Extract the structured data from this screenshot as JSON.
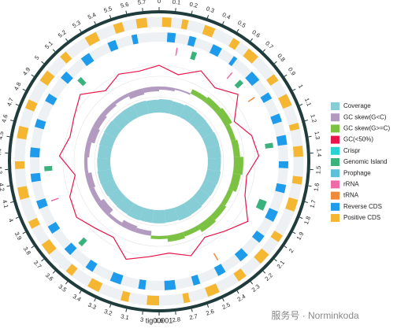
{
  "chart_data": {
    "type": "circos",
    "subtitle": "tig00001",
    "watermark": "服务号 · Norminkoda",
    "xlim": [
      0,
      5.8
    ],
    "xticks": [
      0,
      0.1,
      0.2,
      0.3,
      0.4,
      0.5,
      0.6,
      0.7,
      0.8,
      0.9,
      1,
      1.1,
      1.2,
      1.3,
      1.4,
      1.5,
      1.6,
      1.7,
      1.8,
      1.9,
      2,
      2.1,
      2.2,
      2.3,
      2.4,
      2.5,
      2.6,
      2.7,
      2.8,
      2.9,
      3,
      3.1,
      3.2,
      3.3,
      3.4,
      3.5,
      3.6,
      3.7,
      3.8,
      3.9,
      4,
      4.1,
      4.2,
      4.3,
      4.4,
      4.5,
      4.6,
      4.7,
      4.8,
      4.9,
      5,
      5.1,
      5.2,
      5.3,
      5.4,
      5.5,
      5.6,
      5.7
    ],
    "x": [
      0,
      0.2,
      0.4,
      0.6,
      0.8,
      1,
      1.2,
      1.4,
      1.6,
      1.8,
      2,
      2.2,
      2.4,
      2.6,
      2.8,
      3,
      3.2,
      3.4,
      3.6,
      3.8,
      4,
      4.2,
      4.4,
      4.6,
      4.8,
      5,
      5.2,
      5.4,
      5.6
    ],
    "series": [
      {
        "name": "Coverage",
        "color": "#86cdd6",
        "values": [
          102,
          98,
          105,
          100,
          97,
          103,
          101,
          99,
          104,
          100,
          96,
          102,
          105,
          98,
          101,
          100,
          103,
          99,
          97,
          102,
          104,
          100,
          98,
          101,
          103,
          99,
          100,
          102,
          98
        ]
      },
      {
        "name": "GC skew(G<C)",
        "color": "#b39ac0",
        "values": [
          -0.02,
          -0.01,
          null,
          null,
          null,
          null,
          null,
          null,
          null,
          null,
          null,
          null,
          null,
          null,
          null,
          -0.03,
          -0.04,
          -0.02,
          -0.05,
          -0.03,
          -0.04,
          -0.02,
          -0.03,
          -0.05,
          -0.04,
          -0.03,
          -0.02,
          -0.04,
          -0.03
        ]
      },
      {
        "name": "GC skew(G>=C)",
        "color": "#7cc242",
        "values": [
          null,
          null,
          0.03,
          0.04,
          0.05,
          0.03,
          0.04,
          0.06,
          0.05,
          0.03,
          0.04,
          0.05,
          0.03,
          0.04,
          0.02,
          null,
          null,
          null,
          null,
          null,
          null,
          null,
          null,
          null,
          null,
          null,
          null,
          null,
          null
        ]
      },
      {
        "name": "GC(<50%)",
        "color": "#e8154b",
        "values": [
          41,
          39,
          42,
          40,
          43,
          38,
          41,
          42,
          39,
          40,
          44,
          41,
          39,
          42,
          40,
          41,
          43,
          39,
          40,
          42,
          41,
          38,
          42,
          40,
          41,
          43,
          39,
          41,
          40
        ]
      },
      {
        "name": "Crispr",
        "color": "#29d3d3",
        "features": []
      },
      {
        "name": "Genomic Island",
        "color": "#3ab27c",
        "features": [
          [
            0.27,
            0.31
          ],
          [
            0.72,
            0.76
          ],
          [
            1.3,
            1.34
          ],
          [
            1.78,
            1.86
          ],
          [
            3.58,
            3.62
          ],
          [
            4.27,
            4.31
          ],
          [
            5.07,
            5.11
          ]
        ]
      },
      {
        "name": "Prophage",
        "color": "#5cc0d9",
        "features": []
      },
      {
        "name": "rRNA",
        "color": "#ee6ba7",
        "features": [
          [
            0.14,
            0.15
          ],
          [
            0.63,
            0.64
          ],
          [
            4.02,
            4.03
          ]
        ]
      },
      {
        "name": "tRNA",
        "color": "#f08a3b",
        "features": [
          [
            0.9,
            0.91
          ],
          [
            2.4,
            2.41
          ]
        ]
      },
      {
        "name": "Reverse CDS",
        "color": "#1e9bea",
        "features": [
          [
            0.06,
            0.12
          ],
          [
            0.22,
            0.27
          ],
          [
            0.4,
            0.47
          ],
          [
            0.57,
            0.6
          ],
          [
            0.74,
            0.82
          ],
          [
            0.93,
            0.98
          ],
          [
            1.1,
            1.16
          ],
          [
            1.26,
            1.33
          ],
          [
            1.45,
            1.5
          ],
          [
            1.62,
            1.68
          ],
          [
            1.82,
            1.9
          ],
          [
            2.02,
            2.08
          ],
          [
            2.2,
            2.27
          ],
          [
            2.4,
            2.46
          ],
          [
            2.6,
            2.65
          ],
          [
            2.78,
            2.86
          ],
          [
            3.0,
            3.05
          ],
          [
            3.18,
            3.26
          ],
          [
            3.4,
            3.46
          ],
          [
            3.6,
            3.66
          ],
          [
            3.8,
            3.86
          ],
          [
            4.0,
            4.06
          ],
          [
            4.2,
            4.26
          ],
          [
            4.38,
            4.45
          ],
          [
            4.6,
            4.66
          ],
          [
            4.8,
            4.86
          ],
          [
            5.0,
            5.06
          ],
          [
            5.2,
            5.27
          ],
          [
            5.42,
            5.48
          ],
          [
            5.6,
            5.64
          ]
        ]
      },
      {
        "name": "Positive CDS",
        "color": "#f5b731",
        "features": [
          [
            0.02,
            0.08
          ],
          [
            0.15,
            0.19
          ],
          [
            0.3,
            0.37
          ],
          [
            0.5,
            0.55
          ],
          [
            0.62,
            0.7
          ],
          [
            0.85,
            0.9
          ],
          [
            1.0,
            1.08
          ],
          [
            1.2,
            1.24
          ],
          [
            1.35,
            1.42
          ],
          [
            1.55,
            1.6
          ],
          [
            1.7,
            1.78
          ],
          [
            1.95,
            2.0
          ],
          [
            2.1,
            2.18
          ],
          [
            2.3,
            2.36
          ],
          [
            2.5,
            2.58
          ],
          [
            2.7,
            2.74
          ],
          [
            2.9,
            2.98
          ],
          [
            3.1,
            3.15
          ],
          [
            3.3,
            3.38
          ],
          [
            3.5,
            3.55
          ],
          [
            3.7,
            3.78
          ],
          [
            3.9,
            3.95
          ],
          [
            4.1,
            4.18
          ],
          [
            4.3,
            4.35
          ],
          [
            4.5,
            4.58
          ],
          [
            4.7,
            4.76
          ],
          [
            4.9,
            4.98
          ],
          [
            5.1,
            5.15
          ],
          [
            5.3,
            5.38
          ],
          [
            5.5,
            5.56
          ],
          [
            5.65,
            5.72
          ]
        ]
      }
    ],
    "legend": "right"
  }
}
